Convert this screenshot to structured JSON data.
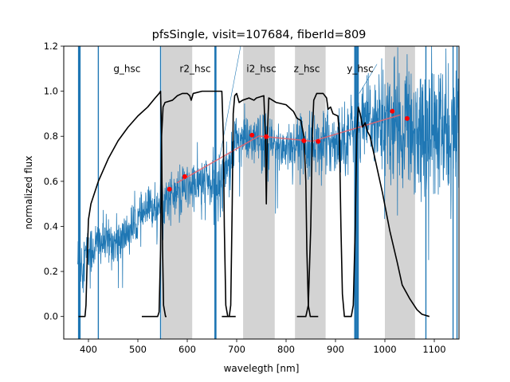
{
  "chart_data": {
    "type": "line",
    "title": "pfsSingle, visit=107684, fiberId=809",
    "xlabel": "waveleg­th [nm]",
    "ylabel": "normalized flux",
    "xlim": [
      350,
      1150
    ],
    "ylim": [
      -0.1,
      1.2
    ],
    "xticks": [
      400,
      500,
      600,
      700,
      800,
      900,
      1000,
      1100
    ],
    "yticks": [
      0.0,
      0.2,
      0.4,
      0.6,
      0.8,
      1.0,
      1.2
    ],
    "grid": false,
    "shaded_bands": [
      {
        "x0": 548,
        "x1": 610
      },
      {
        "x0": 713,
        "x1": 777
      },
      {
        "x0": 818,
        "x1": 880
      },
      {
        "x0": 1000,
        "x1": 1061
      }
    ],
    "filter_labels": [
      {
        "text": "g_hsc",
        "x": 478,
        "y": 1.1
      },
      {
        "text": "r2_hsc",
        "x": 616,
        "y": 1.1
      },
      {
        "text": "i2_hsc",
        "x": 750,
        "y": 1.1
      },
      {
        "text": "z_hsc",
        "x": 842,
        "y": 1.1
      },
      {
        "text": "y_hsc",
        "x": 950,
        "y": 1.1
      }
    ],
    "spectrum": {
      "name": "flux",
      "color": "#1f77b4",
      "trend": [
        [
          385,
          0.25
        ],
        [
          420,
          0.33
        ],
        [
          460,
          0.33
        ],
        [
          490,
          0.4
        ],
        [
          520,
          0.47
        ],
        [
          550,
          0.52
        ],
        [
          600,
          0.57
        ],
        [
          640,
          0.6
        ],
        [
          660,
          0.55
        ],
        [
          700,
          0.79
        ],
        [
          740,
          0.78
        ],
        [
          790,
          0.75
        ],
        [
          830,
          0.77
        ],
        [
          880,
          0.77
        ],
        [
          910,
          0.79
        ],
        [
          950,
          0.84
        ],
        [
          980,
          0.88
        ],
        [
          1020,
          0.86
        ],
        [
          1080,
          0.83
        ],
        [
          1150,
          0.78
        ]
      ],
      "noise": [
        [
          385,
          0.06
        ],
        [
          460,
          0.05
        ],
        [
          560,
          0.05
        ],
        [
          640,
          0.06
        ],
        [
          700,
          0.06
        ],
        [
          800,
          0.06
        ],
        [
          880,
          0.07
        ],
        [
          960,
          0.09
        ],
        [
          1000,
          0.13
        ],
        [
          1080,
          0.15
        ],
        [
          1150,
          0.17
        ]
      ],
      "spikes": [
        380,
        381,
        382,
        383,
        420,
        546,
        656,
        657,
        658,
        939,
        940,
        941,
        942,
        944,
        946,
        1083,
        1138,
        1146
      ]
    },
    "filters": [
      {
        "name": "g_hsc",
        "color": "#000000",
        "points": [
          [
            380,
            0
          ],
          [
            393,
            0
          ],
          [
            395,
            0.05
          ],
          [
            398,
            0.3
          ],
          [
            400,
            0.43
          ],
          [
            405,
            0.5
          ],
          [
            420,
            0.6
          ],
          [
            440,
            0.7
          ],
          [
            460,
            0.78
          ],
          [
            480,
            0.84
          ],
          [
            500,
            0.89
          ],
          [
            520,
            0.93
          ],
          [
            535,
            0.97
          ],
          [
            543,
            0.99
          ],
          [
            546,
            1.0
          ],
          [
            548,
            0.8
          ],
          [
            550,
            0.3
          ],
          [
            552,
            0.05
          ],
          [
            556,
            0
          ],
          [
            558,
            0
          ]
        ]
      },
      {
        "name": "r2_hsc",
        "color": "#000000",
        "points": [
          [
            508,
            0
          ],
          [
            540,
            0
          ],
          [
            543,
            0.02
          ],
          [
            546,
            0.3
          ],
          [
            548,
            0.8
          ],
          [
            551,
            0.93
          ],
          [
            555,
            0.95
          ],
          [
            570,
            0.96
          ],
          [
            580,
            0.98
          ],
          [
            590,
            0.99
          ],
          [
            600,
            0.99
          ],
          [
            605,
            0.98
          ],
          [
            608,
            0.96
          ],
          [
            612,
            0.99
          ],
          [
            630,
            1.0
          ],
          [
            660,
            1.0
          ],
          [
            670,
            1.0
          ],
          [
            673,
            0.8
          ],
          [
            675,
            0.4
          ],
          [
            678,
            0.05
          ],
          [
            682,
            0
          ],
          [
            698,
            0
          ]
        ]
      },
      {
        "name": "i2_hsc",
        "color": "#000000",
        "points": [
          [
            670,
            0
          ],
          [
            685,
            0
          ],
          [
            688,
            0.05
          ],
          [
            691,
            0.5
          ],
          [
            693,
            0.9
          ],
          [
            696,
            0.98
          ],
          [
            700,
            0.99
          ],
          [
            705,
            0.95
          ],
          [
            712,
            0.96
          ],
          [
            725,
            0.97
          ],
          [
            735,
            0.96
          ],
          [
            740,
            0.97
          ],
          [
            755,
            0.98
          ],
          [
            758,
            0.8
          ],
          [
            760,
            0.5
          ],
          [
            762,
            0.8
          ],
          [
            765,
            0.97
          ],
          [
            780,
            0.95
          ],
          [
            800,
            0.94
          ],
          [
            815,
            0.91
          ],
          [
            822,
            0.88
          ],
          [
            830,
            0.87
          ],
          [
            836,
            0.8
          ],
          [
            840,
            0.6
          ],
          [
            842,
            0.3
          ],
          [
            845,
            0.05
          ],
          [
            849,
            0
          ],
          [
            865,
            0
          ]
        ]
      },
      {
        "name": "z_hsc",
        "color": "#000000",
        "points": [
          [
            822,
            0
          ],
          [
            840,
            0
          ],
          [
            845,
            0.05
          ],
          [
            850,
            0.4
          ],
          [
            853,
            0.8
          ],
          [
            856,
            0.96
          ],
          [
            862,
            0.99
          ],
          [
            875,
            0.99
          ],
          [
            882,
            0.97
          ],
          [
            885,
            0.92
          ],
          [
            890,
            0.93
          ],
          [
            895,
            0.9
          ],
          [
            905,
            0.89
          ],
          [
            908,
            0.8
          ],
          [
            911,
            0.4
          ],
          [
            914,
            0.1
          ],
          [
            918,
            0
          ],
          [
            930,
            0
          ]
        ]
      },
      {
        "name": "y_hsc",
        "color": "#000000",
        "points": [
          [
            920,
            0
          ],
          [
            932,
            0
          ],
          [
            936,
            0.05
          ],
          [
            940,
            0.4
          ],
          [
            943,
            0.8
          ],
          [
            946,
            0.93
          ],
          [
            950,
            0.9
          ],
          [
            955,
            0.84
          ],
          [
            960,
            0.86
          ],
          [
            965,
            0.82
          ],
          [
            970,
            0.8
          ],
          [
            980,
            0.7
          ],
          [
            995,
            0.55
          ],
          [
            1010,
            0.38
          ],
          [
            1025,
            0.24
          ],
          [
            1035,
            0.14
          ],
          [
            1050,
            0.08
          ],
          [
            1065,
            0.03
          ],
          [
            1075,
            0.01
          ],
          [
            1090,
            0
          ]
        ]
      }
    ],
    "photometry_points": {
      "color": "#ff0000",
      "x": [
        564,
        595,
        731,
        760,
        836,
        865,
        1015,
        1045
      ],
      "y": [
        0.565,
        0.621,
        0.805,
        0.798,
        0.78,
        0.777,
        0.911,
        0.879
      ]
    },
    "synthetic_line": {
      "color": "#e8636b",
      "x": [
        579,
        745,
        853,
        1031
      ],
      "y": [
        0.593,
        0.801,
        0.778,
        0.895
      ]
    }
  }
}
